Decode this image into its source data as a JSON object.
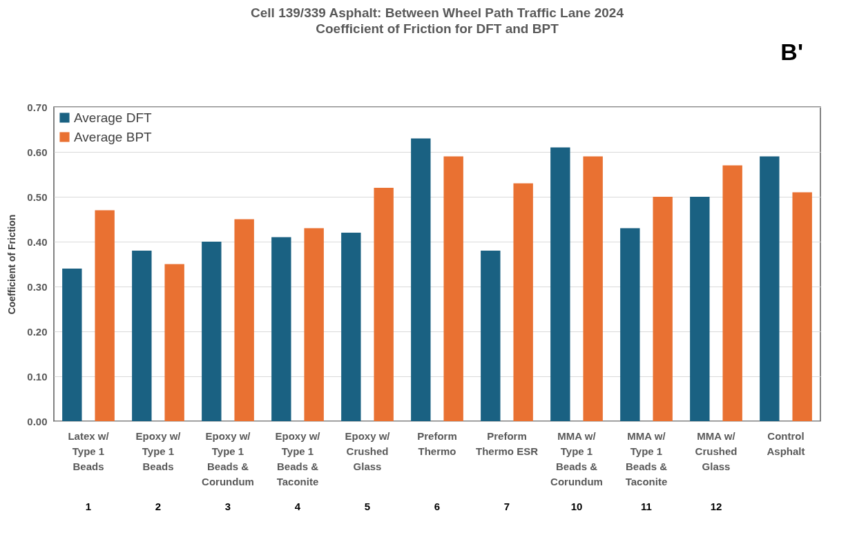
{
  "chart_data": {
    "type": "bar",
    "title": "Cell 139/339 Asphalt:   Between Wheel Path Traffic Lane 2024",
    "subtitle": "Coefficient of Friction for DFT and BPT",
    "ylabel": "Coefficient of Friction",
    "categories": [
      "Latex w/ Type 1 Beads",
      "Epoxy w/ Type 1 Beads",
      "Epoxy w/ Type 1 Beads & Corundum",
      "Epoxy w/ Type 1 Beads & Taconite",
      "Epoxy w/ Crushed Glass",
      "Preform Thermo",
      "Preform Thermo ESR",
      "MMA w/ Type 1 Beads & Corundum",
      "MMA w/ Type 1 Beads & Taconite",
      "MMA w/ Crushed Glass",
      "Control Asphalt"
    ],
    "series": [
      {
        "name": "Average DFT",
        "color": "#1a6182",
        "values": [
          0.34,
          0.38,
          0.4,
          0.41,
          0.42,
          0.63,
          0.38,
          0.61,
          0.43,
          0.5,
          0.59
        ]
      },
      {
        "name": "Average BPT",
        "color": "#e97132",
        "values": [
          0.47,
          0.35,
          0.45,
          0.43,
          0.52,
          0.59,
          0.53,
          0.59,
          0.5,
          0.57,
          0.51
        ]
      }
    ],
    "ylim": [
      0,
      0.7
    ],
    "yticks": [
      {
        "value": 0,
        "label": "0.00"
      },
      {
        "value": 0.1,
        "label": "0.10"
      },
      {
        "value": 0.2,
        "label": "0.20"
      },
      {
        "value": 0.3,
        "label": "0.30"
      },
      {
        "value": 0.4,
        "label": "0.40"
      },
      {
        "value": 0.5,
        "label": "0.50"
      },
      {
        "value": 0.6,
        "label": "0.60"
      },
      {
        "value": 0.7,
        "label": "0.70"
      }
    ],
    "grid": "y",
    "legend": "top left",
    "annotations": [
      "B'",
      "1",
      "2",
      "3",
      "4",
      "5",
      "6",
      "7",
      "10",
      "11",
      "12"
    ]
  }
}
